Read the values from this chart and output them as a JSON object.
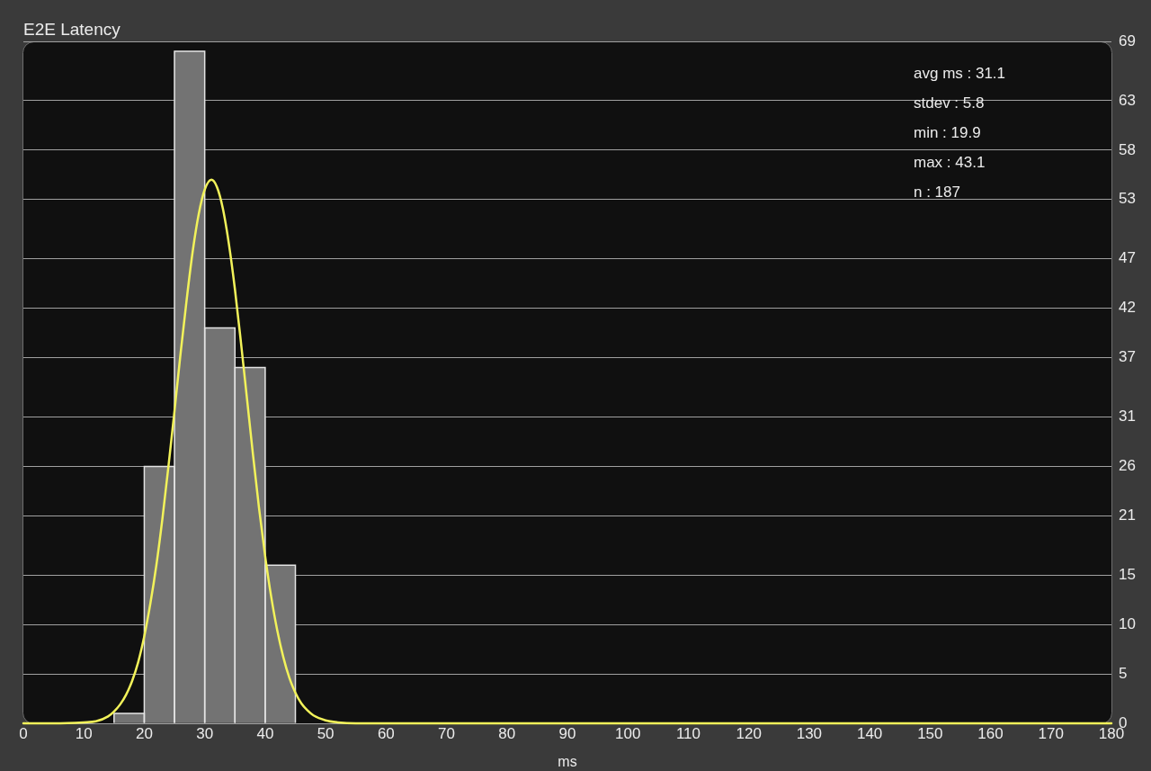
{
  "chart_data": {
    "type": "histogram",
    "title": "E2E Latency",
    "xlabel": "ms",
    "bins": [
      15,
      20,
      25,
      30,
      35,
      40,
      45
    ],
    "series": [
      {
        "color": "#737373",
        "values": [
          1,
          26,
          68,
          40,
          36,
          16
        ]
      },
      {
        "type": "line",
        "color": "#f2f25a",
        "x": [
          0,
          5,
          10,
          12,
          14,
          15,
          16,
          17,
          18,
          19,
          20,
          21,
          22,
          23,
          24,
          25,
          26,
          27,
          28,
          29,
          30,
          31.1,
          32,
          33,
          34,
          35,
          36,
          37,
          38,
          39,
          40,
          41,
          42,
          43,
          44,
          45,
          46,
          47,
          48,
          50,
          52,
          55,
          60,
          180
        ],
        "values": [
          0,
          0,
          0.1,
          0.2,
          0.7,
          1.2,
          1.9,
          2.9,
          4.3,
          6.2,
          8.8,
          12.1,
          16,
          20.7,
          26,
          31.6,
          37.4,
          42.8,
          47.7,
          51.5,
          54,
          55,
          54.3,
          52.1,
          48.5,
          43.9,
          38.5,
          32.8,
          27.1,
          21.7,
          16.9,
          12.8,
          9.4,
          6.7,
          4.6,
          3.1,
          2,
          1.3,
          0.8,
          0.3,
          0.1,
          0,
          0,
          0
        ]
      }
    ],
    "xlim": [
      0,
      180
    ],
    "xticks": [
      0,
      10,
      20,
      30,
      40,
      50,
      60,
      70,
      80,
      90,
      100,
      110,
      120,
      130,
      140,
      150,
      160,
      170,
      180
    ],
    "ylim": [
      0,
      69
    ],
    "yticks": [
      0,
      5,
      10,
      15,
      21,
      26,
      31,
      37,
      42,
      47,
      53,
      58,
      63,
      69
    ],
    "grid": "y",
    "annotations": [
      "avg ms : 31.1",
      "stdev : 5.8",
      "min : 19.9",
      "max : 43.1",
      "n : 187"
    ]
  }
}
